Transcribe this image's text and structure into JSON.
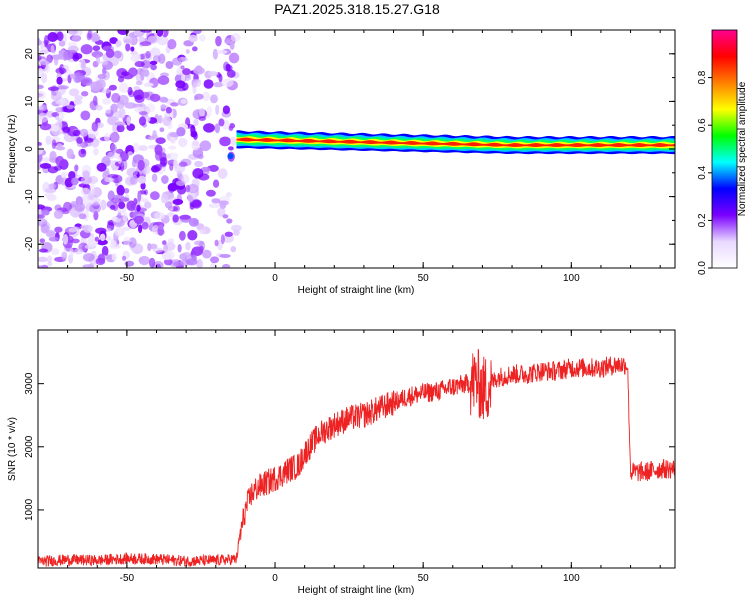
{
  "title": "PAZ1.2025.318.15.27.G18",
  "chart_data": [
    {
      "type": "heatmap",
      "title": "PAZ1.2025.318.15.27.G18",
      "xlabel": "Height of straight line (km)",
      "ylabel": "Frequency (Hz)",
      "xlim": [
        -80,
        135
      ],
      "ylim": [
        -25,
        25
      ],
      "xticks": [
        -50,
        0,
        50,
        100
      ],
      "yticks": [
        -20,
        -10,
        0,
        10,
        20
      ],
      "colorbar": {
        "label": "Normalized spectral amplitude",
        "range": [
          0,
          1
        ],
        "ticks": [
          0.0,
          0.2,
          0.4,
          0.6,
          0.8
        ],
        "colors": [
          "#ffffff",
          "#e8d8ff",
          "#7a00ff",
          "#0000ff",
          "#00ffff",
          "#00ff00",
          "#ffff00",
          "#ff8000",
          "#ff0000",
          "#ff0090"
        ]
      },
      "description_values": {
        "noise_region_x": [
          -80,
          -13
        ],
        "noise_level": 0.15,
        "tone_x": [
          -13,
          135
        ],
        "tone_frequency_start_hz": 2.0,
        "tone_frequency_end_hz": 0.8,
        "tone_amplitude": 0.9
      }
    },
    {
      "type": "line",
      "xlabel": "Height of straight line (km)",
      "ylabel": "SNR (10 * v/v)",
      "xlim": [
        -80,
        135
      ],
      "ylim": [
        80,
        3850
      ],
      "xticks": [
        -50,
        0,
        50,
        100
      ],
      "yticks": [
        1000,
        2000,
        3000
      ],
      "series": [
        {
          "name": "SNR",
          "color": "#ee2222",
          "x": [
            -80,
            -70,
            -60,
            -50,
            -40,
            -30,
            -20,
            -13,
            -12,
            -10,
            -8,
            -6,
            -4,
            -2,
            0,
            2,
            5,
            8,
            10,
            15,
            20,
            25,
            30,
            35,
            40,
            45,
            50,
            55,
            60,
            65,
            68,
            70,
            72,
            75,
            80,
            85,
            90,
            95,
            100,
            105,
            110,
            115,
            119,
            120,
            121,
            125,
            130,
            135
          ],
          "values": [
            180,
            210,
            200,
            230,
            220,
            190,
            200,
            220,
            550,
            1000,
            1250,
            1350,
            1400,
            1450,
            1500,
            1550,
            1650,
            1700,
            1900,
            2200,
            2350,
            2450,
            2500,
            2600,
            2700,
            2800,
            2850,
            2880,
            2950,
            3000,
            3050,
            2900,
            2950,
            3100,
            3150,
            3150,
            3200,
            3200,
            3250,
            3250,
            3250,
            3300,
            3300,
            1600,
            1600,
            1600,
            1650,
            1650
          ]
        }
      ]
    }
  ]
}
